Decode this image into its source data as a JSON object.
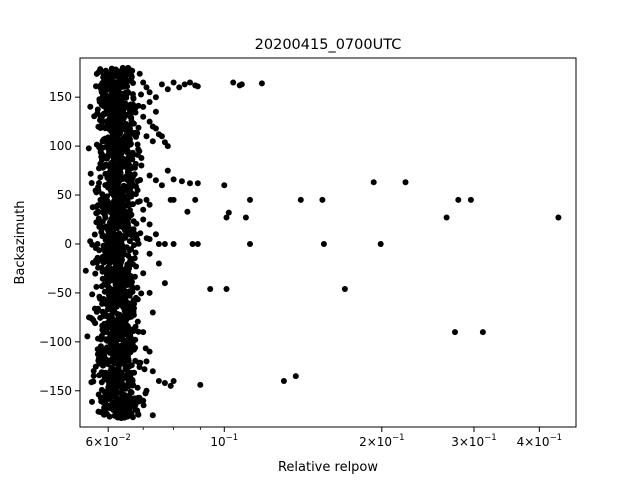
{
  "chart_data": {
    "type": "scatter",
    "title": "20200415_0700UTC",
    "xlabel": "Relative relpow",
    "ylabel": "Backazimuth",
    "xscale": "log",
    "xlim": [
      0.053,
      0.47
    ],
    "ylim": [
      -187,
      190
    ],
    "grid": false,
    "legend": "none",
    "marker_color": "#000000",
    "x_ticks": [
      {
        "value": 0.06,
        "base": "6",
        "exp": "−2"
      },
      {
        "value": 0.1,
        "base": "10",
        "exp": "−1"
      },
      {
        "value": 0.2,
        "base": "2",
        "exp": "−1"
      },
      {
        "value": 0.3,
        "base": "3",
        "exp": "−1"
      },
      {
        "value": 0.4,
        "base": "4",
        "exp": "−1"
      }
    ],
    "x_tick_prefix": "×10",
    "x_minor_ticks": [
      0.07,
      0.08,
      0.09
    ],
    "y_ticks": [
      {
        "value": 150,
        "label": "150"
      },
      {
        "value": 100,
        "label": "100"
      },
      {
        "value": 50,
        "label": "50"
      },
      {
        "value": 0,
        "label": "0"
      },
      {
        "value": -50,
        "label": "−50"
      },
      {
        "value": -100,
        "label": "−100"
      },
      {
        "value": -150,
        "label": "−150"
      }
    ],
    "cluster": {
      "x_center": 0.0625,
      "x_spread": 0.0028,
      "y_range": [
        -178,
        180
      ],
      "count": 1600
    },
    "points": [
      [
        0.0578,
        100
      ],
      [
        0.0566,
        -66
      ],
      [
        0.0562,
        -78
      ],
      [
        0.058,
        45
      ],
      [
        0.0585,
        8
      ],
      [
        0.0595,
        120
      ],
      [
        0.06,
        -140
      ],
      [
        0.0603,
        -85
      ],
      [
        0.0598,
        -30
      ],
      [
        0.059,
        162
      ],
      [
        0.07,
        165
      ],
      [
        0.071,
        160
      ],
      [
        0.072,
        155
      ],
      [
        0.074,
        150
      ],
      [
        0.076,
        163
      ],
      [
        0.078,
        158
      ],
      [
        0.08,
        165
      ],
      [
        0.082,
        160
      ],
      [
        0.084,
        163
      ],
      [
        0.086,
        165
      ],
      [
        0.088,
        162
      ],
      [
        0.089,
        161
      ],
      [
        0.07,
        130
      ],
      [
        0.072,
        125
      ],
      [
        0.073,
        120
      ],
      [
        0.074,
        118
      ],
      [
        0.075,
        112
      ],
      [
        0.076,
        110
      ],
      [
        0.077,
        104
      ],
      [
        0.078,
        100
      ],
      [
        0.07,
        140
      ],
      [
        0.072,
        145
      ],
      [
        0.074,
        135
      ],
      [
        0.071,
        110
      ],
      [
        0.073,
        105
      ],
      [
        0.072,
        70
      ],
      [
        0.074,
        65
      ],
      [
        0.076,
        60
      ],
      [
        0.078,
        75
      ],
      [
        0.08,
        66
      ],
      [
        0.083,
        64
      ],
      [
        0.086,
        62
      ],
      [
        0.089,
        62
      ],
      [
        0.085,
        33
      ],
      [
        0.088,
        45
      ],
      [
        0.079,
        45
      ],
      [
        0.08,
        45
      ],
      [
        0.071,
        45
      ],
      [
        0.072,
        40
      ],
      [
        0.07,
        35
      ],
      [
        0.07,
        25
      ],
      [
        0.072,
        20
      ],
      [
        0.074,
        10
      ],
      [
        0.072,
        5
      ],
      [
        0.075,
        0
      ],
      [
        0.077,
        0
      ],
      [
        0.08,
        0
      ],
      [
        0.087,
        0
      ],
      [
        0.089,
        0
      ],
      [
        0.072,
        -10
      ],
      [
        0.075,
        -20
      ],
      [
        0.07,
        -30
      ],
      [
        0.072,
        -50
      ],
      [
        0.077,
        -40
      ],
      [
        0.073,
        -70
      ],
      [
        0.07,
        -90
      ],
      [
        0.072,
        -110
      ],
      [
        0.071,
        -120
      ],
      [
        0.073,
        -130
      ],
      [
        0.075,
        -140
      ],
      [
        0.077,
        -142
      ],
      [
        0.079,
        -145
      ],
      [
        0.08,
        -140
      ],
      [
        0.07,
        -160
      ],
      [
        0.073,
        -175
      ],
      [
        0.071,
        -150
      ],
      [
        0.09,
        -144
      ],
      [
        0.094,
        -46
      ],
      [
        0.101,
        -46
      ],
      [
        0.1,
        60
      ],
      [
        0.102,
        32
      ],
      [
        0.101,
        27
      ],
      [
        0.104,
        165
      ],
      [
        0.107,
        162
      ],
      [
        0.108,
        163
      ],
      [
        0.11,
        27
      ],
      [
        0.112,
        0
      ],
      [
        0.112,
        45
      ],
      [
        0.118,
        164
      ],
      [
        0.13,
        -140
      ],
      [
        0.137,
        -135
      ],
      [
        0.14,
        45
      ],
      [
        0.154,
        45
      ],
      [
        0.155,
        0
      ],
      [
        0.17,
        -46
      ],
      [
        0.193,
        63
      ],
      [
        0.199,
        0
      ],
      [
        0.222,
        63
      ],
      [
        0.266,
        27
      ],
      [
        0.276,
        -90
      ],
      [
        0.28,
        45
      ],
      [
        0.296,
        45
      ],
      [
        0.312,
        -90
      ],
      [
        0.435,
        27
      ]
    ]
  }
}
